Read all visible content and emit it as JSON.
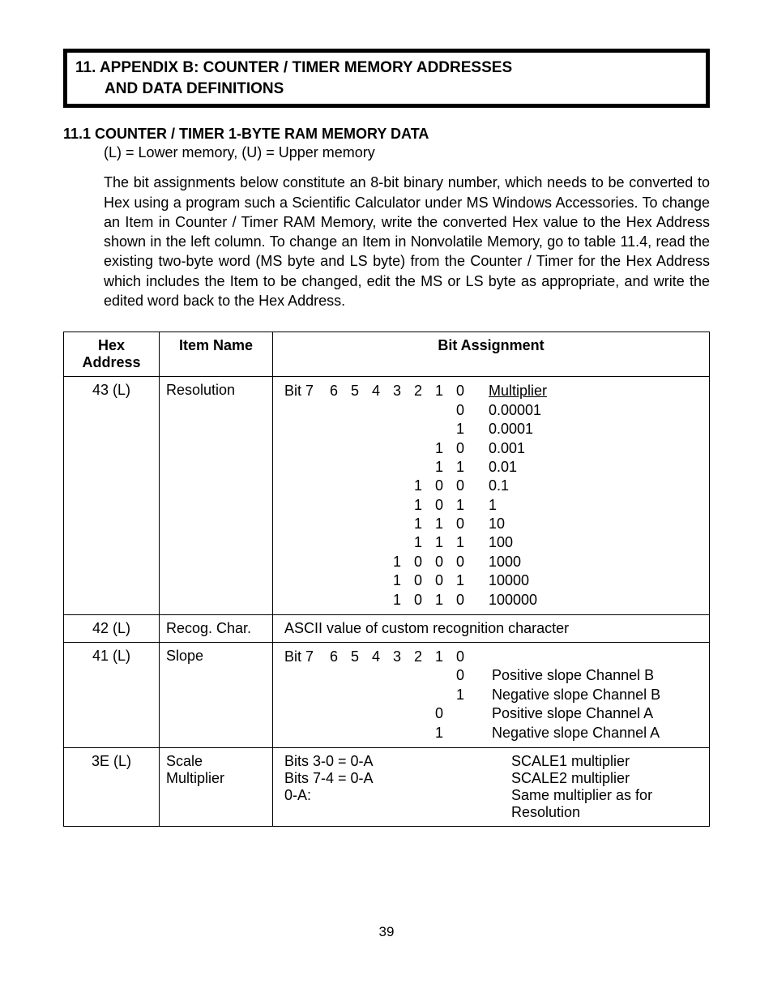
{
  "header": {
    "line1": "11.  APPENDIX B: COUNTER / TIMER MEMORY ADDRESSES",
    "line2": "AND DATA DEFINITIONS"
  },
  "section": {
    "heading": "11.1  COUNTER / TIMER 1-BYTE RAM MEMORY DATA",
    "subline": "(L) = Lower memory, (U) = Upper memory",
    "paragraph": "The bit assignments below constitute an 8-bit binary number, which needs to be converted to Hex using a program such a Scientific Calculator under MS Windows Accessories. To change an Item in Counter / Timer RAM Memory, write the converted Hex value to the Hex Address shown in the left column. To change an Item in Nonvolatile Memory, go to table 11.4, read the existing two-byte word (MS byte and LS byte) from the Counter / Timer for the Hex Address which includes the Item to be changed, edit the MS or LS byte as appropriate, and write the edited word back to the Hex Address."
  },
  "table": {
    "headers": {
      "hex": "Hex Address",
      "item": "Item Name",
      "bit": "Bit Assignment"
    },
    "bit_labels": [
      "Bit 7",
      "6",
      "5",
      "4",
      "3",
      "2",
      "1",
      "0"
    ],
    "resolution": {
      "hex": "43 (L)",
      "item": "Resolution",
      "header_label": "Multiplier",
      "rows": [
        {
          "b3": "",
          "b2": "",
          "b1": "",
          "b0": "0",
          "label": "0.00001"
        },
        {
          "b3": "",
          "b2": "",
          "b1": "",
          "b0": "1",
          "label": "0.0001"
        },
        {
          "b3": "",
          "b2": "",
          "b1": "1",
          "b0": "0",
          "label": "0.001"
        },
        {
          "b3": "",
          "b2": "",
          "b1": "1",
          "b0": "1",
          "label": "0.01"
        },
        {
          "b3": "",
          "b2": "1",
          "b1": "0",
          "b0": "0",
          "label": "0.1"
        },
        {
          "b3": "",
          "b2": "1",
          "b1": "0",
          "b0": "1",
          "label": "1"
        },
        {
          "b3": "",
          "b2": "1",
          "b1": "1",
          "b0": "0",
          "label": "10"
        },
        {
          "b3": "",
          "b2": "1",
          "b1": "1",
          "b0": "1",
          "label": "100"
        },
        {
          "b3": "1",
          "b2": "0",
          "b1": "0",
          "b0": "0",
          "label": "1000"
        },
        {
          "b3": "1",
          "b2": "0",
          "b1": "0",
          "b0": "1",
          "label": "10000"
        },
        {
          "b3": "1",
          "b2": "0",
          "b1": "1",
          "b0": "0",
          "label": "100000"
        }
      ]
    },
    "recog": {
      "hex": "42 (L)",
      "item": "Recog. Char.",
      "bit": "ASCII value of custom recognition character"
    },
    "slope": {
      "hex": "41 (L)",
      "item": "Slope",
      "rows": [
        {
          "b1": "",
          "b0": "0",
          "label": "Positive slope Channel B"
        },
        {
          "b1": "",
          "b0": "1",
          "label": "Negative slope Channel B"
        },
        {
          "b1": "0",
          "b0": "",
          "label": "Positive slope Channel A"
        },
        {
          "b1": "1",
          "b0": "",
          "label": "Negative slope Channel A"
        }
      ]
    },
    "scale": {
      "hex": "3E (L)",
      "item_l1": "Scale",
      "item_l2": "Multiplier",
      "left_l1": "Bits 3-0 = 0-A",
      "left_l2": "Bits 7-4 = 0-A",
      "left_l3": "0-A:",
      "right_l1": "SCALE1 multiplier",
      "right_l2": "SCALE2 multiplier",
      "right_l3": "Same multiplier as for Resolution"
    }
  },
  "page_number": "39"
}
